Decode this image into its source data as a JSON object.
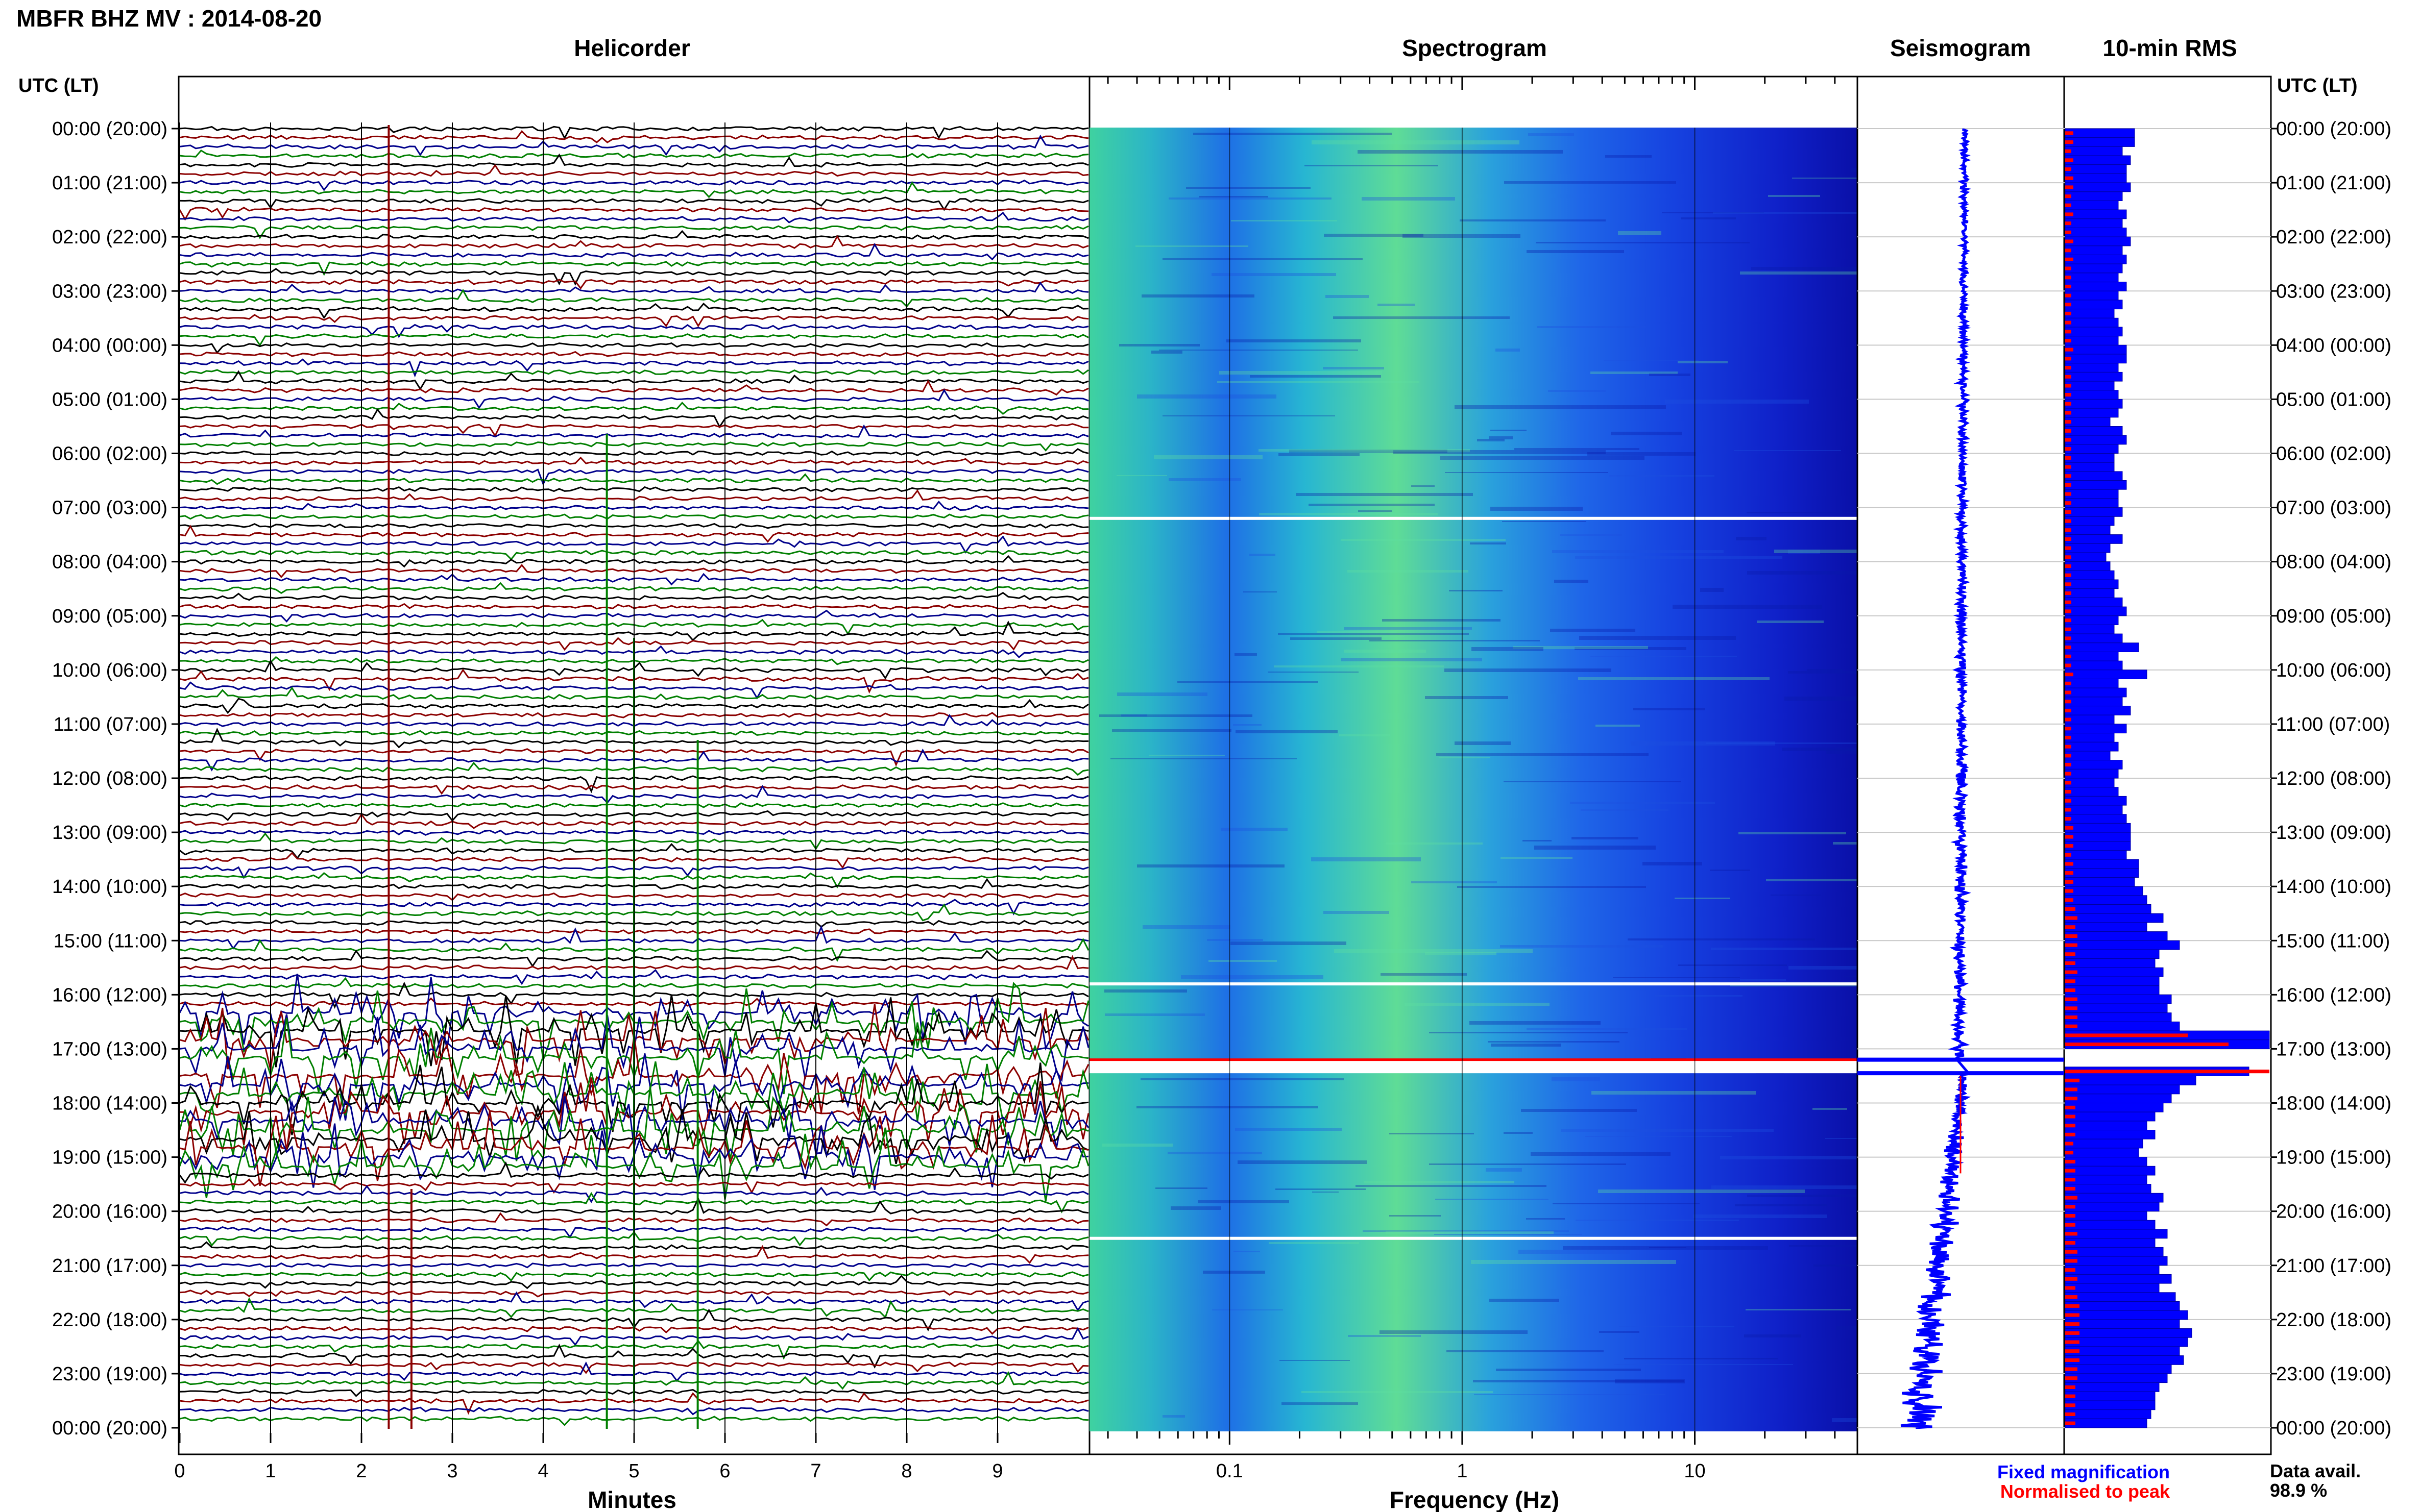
{
  "header": {
    "title": "MBFR BHZ MV : 2014-08-20"
  },
  "panels": {
    "helicorder_title": "Helicorder",
    "spectrogram_title": "Spectrogram",
    "seismogram_title": "Seismogram",
    "rms_title": "10-min RMS"
  },
  "axes": {
    "time_axis_label_left": "UTC (LT)",
    "time_axis_label_right": "UTC (LT)",
    "helicorder_xlabel": "Minutes",
    "spectrogram_xlabel": "Frequency (Hz)"
  },
  "legend": {
    "fixed": "Fixed magnification",
    "normalised": "Normalised to peak",
    "avail_label": "Data avail.",
    "avail_value": "98.9 %"
  },
  "colors": {
    "fixed": "#0000ff",
    "normalised": "#ff0000",
    "trace_cycle": [
      "#000000",
      "#8b0000",
      "#00008b",
      "#007f00"
    ]
  },
  "chart_data": {
    "type": "helicorder",
    "y_tick_labels": [
      "00:00 (20:00)",
      "01:00 (21:00)",
      "02:00 (22:00)",
      "03:00 (23:00)",
      "04:00 (00:00)",
      "05:00 (01:00)",
      "06:00 (02:00)",
      "07:00 (03:00)",
      "08:00 (04:00)",
      "09:00 (05:00)",
      "10:00 (06:00)",
      "11:00 (07:00)",
      "12:00 (08:00)",
      "13:00 (09:00)",
      "14:00 (10:00)",
      "15:00 (11:00)",
      "16:00 (12:00)",
      "17:00 (13:00)",
      "18:00 (14:00)",
      "19:00 (15:00)",
      "20:00 (16:00)",
      "21:00 (17:00)",
      "22:00 (18:00)",
      "23:00 (19:00)",
      "00:00 (20:00)"
    ],
    "helicorder_x_ticks": [
      "0",
      "1",
      "2",
      "3",
      "4",
      "5",
      "6",
      "7",
      "8",
      "9"
    ],
    "helicorder_xlim": [
      0,
      10
    ],
    "spectrogram_x_ticks": [
      "0.1",
      "1",
      "10"
    ],
    "spectrogram_xlim": [
      0.025,
      50
    ],
    "spectrogram_xscale": "log",
    "data_gaps_utc_hours": [
      7.2,
      15.8,
      17.2,
      17.45,
      20.5
    ],
    "rms_10min_fixed": [
      0.34,
      0.34,
      0.28,
      0.32,
      0.3,
      0.3,
      0.32,
      0.28,
      0.26,
      0.3,
      0.28,
      0.3,
      0.32,
      0.28,
      0.3,
      0.28,
      0.26,
      0.3,
      0.26,
      0.28,
      0.24,
      0.26,
      0.28,
      0.26,
      0.3,
      0.3,
      0.26,
      0.28,
      0.24,
      0.26,
      0.28,
      0.26,
      0.22,
      0.28,
      0.3,
      0.26,
      0.24,
      0.24,
      0.28,
      0.3,
      0.26,
      0.26,
      0.28,
      0.24,
      0.22,
      0.28,
      0.22,
      0.2,
      0.22,
      0.24,
      0.26,
      0.24,
      0.28,
      0.3,
      0.26,
      0.24,
      0.28,
      0.36,
      0.26,
      0.28,
      0.4,
      0.26,
      0.3,
      0.28,
      0.32,
      0.24,
      0.3,
      0.24,
      0.26,
      0.22,
      0.28,
      0.26,
      0.24,
      0.26,
      0.3,
      0.28,
      0.3,
      0.32,
      0.32,
      0.32,
      0.3,
      0.36,
      0.36,
      0.34,
      0.38,
      0.4,
      0.42,
      0.48,
      0.4,
      0.5,
      0.56,
      0.46,
      0.44,
      0.48,
      0.46,
      0.46,
      0.52,
      0.5,
      0.52,
      0.56,
      1.0,
      1.0,
      0.0,
      0.0,
      0.9,
      0.64,
      0.56,
      0.52,
      0.48,
      0.44,
      0.4,
      0.44,
      0.38,
      0.36,
      0.4,
      0.44,
      0.4,
      0.42,
      0.48,
      0.46,
      0.4,
      0.44,
      0.5,
      0.44,
      0.48,
      0.5,
      0.46,
      0.52,
      0.46,
      0.54,
      0.56,
      0.6,
      0.56,
      0.62,
      0.6,
      0.56,
      0.58,
      0.52,
      0.5,
      0.46,
      0.44,
      0.44,
      0.42,
      0.4
    ],
    "rms_10min_normalised": [
      0.04,
      0.04,
      0.03,
      0.04,
      0.03,
      0.04,
      0.04,
      0.03,
      0.03,
      0.04,
      0.03,
      0.03,
      0.04,
      0.03,
      0.04,
      0.03,
      0.03,
      0.03,
      0.03,
      0.03,
      0.03,
      0.03,
      0.03,
      0.03,
      0.04,
      0.03,
      0.03,
      0.03,
      0.03,
      0.03,
      0.03,
      0.03,
      0.03,
      0.03,
      0.03,
      0.03,
      0.03,
      0.03,
      0.03,
      0.03,
      0.03,
      0.03,
      0.03,
      0.03,
      0.03,
      0.03,
      0.03,
      0.03,
      0.03,
      0.03,
      0.03,
      0.03,
      0.03,
      0.03,
      0.03,
      0.03,
      0.03,
      0.03,
      0.03,
      0.03,
      0.04,
      0.03,
      0.03,
      0.03,
      0.03,
      0.03,
      0.03,
      0.03,
      0.03,
      0.03,
      0.03,
      0.03,
      0.03,
      0.03,
      0.03,
      0.03,
      0.03,
      0.04,
      0.04,
      0.04,
      0.03,
      0.04,
      0.04,
      0.04,
      0.04,
      0.04,
      0.05,
      0.06,
      0.05,
      0.06,
      0.06,
      0.05,
      0.05,
      0.06,
      0.05,
      0.05,
      0.06,
      0.06,
      0.06,
      0.06,
      0.6,
      0.8,
      0.0,
      0.0,
      1.0,
      0.07,
      0.06,
      0.06,
      0.05,
      0.05,
      0.05,
      0.05,
      0.04,
      0.04,
      0.05,
      0.05,
      0.05,
      0.05,
      0.06,
      0.05,
      0.05,
      0.05,
      0.06,
      0.05,
      0.06,
      0.06,
      0.05,
      0.06,
      0.05,
      0.06,
      0.07,
      0.07,
      0.07,
      0.07,
      0.07,
      0.07,
      0.07,
      0.06,
      0.06,
      0.05,
      0.05,
      0.05,
      0.05,
      0.05
    ]
  }
}
